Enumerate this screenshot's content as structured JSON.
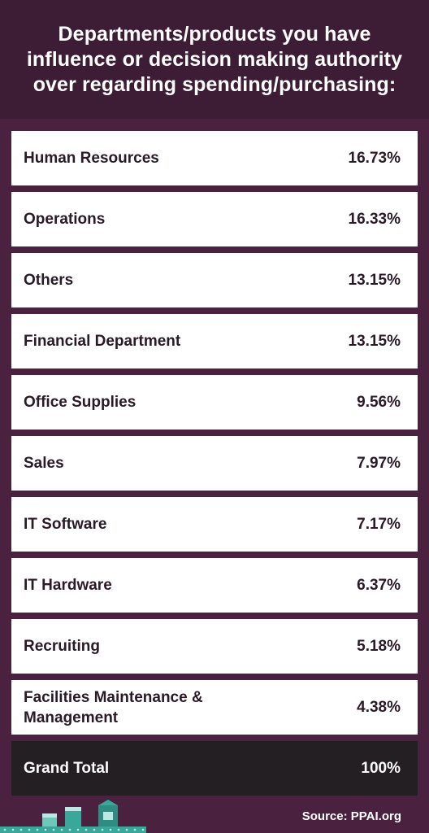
{
  "header": {
    "title": "Departments/products you have influence or decision making authority over regarding spending/purchasing:"
  },
  "chart_data": {
    "type": "table",
    "rows": [
      {
        "label": "Human Resources",
        "value": "16.73%"
      },
      {
        "label": "Operations",
        "value": "16.33%"
      },
      {
        "label": "Others",
        "value": "13.15%"
      },
      {
        "label": "Financial Department",
        "value": "13.15%"
      },
      {
        "label": "Office Supplies",
        "value": "9.56%"
      },
      {
        "label": "Sales",
        "value": "7.97%"
      },
      {
        "label": "IT Software",
        "value": "7.17%"
      },
      {
        "label": "IT Hardware",
        "value": "6.37%"
      },
      {
        "label": "Recruiting",
        "value": "5.18%"
      },
      {
        "label": "Facilities Maintenance & Management",
        "value": "4.38%"
      }
    ],
    "total": {
      "label": "Grand Total",
      "value": "100%"
    }
  },
  "footer": {
    "source": "Source: PPAI.org"
  },
  "colors": {
    "background": "#4a2240",
    "header": "#3d1d36",
    "row": "#ffffff",
    "total_row": "#231f22",
    "text_dark": "#2a1a26",
    "accent": "#3aa79b"
  },
  "icons": [
    "decorative-buildings-icon"
  ]
}
